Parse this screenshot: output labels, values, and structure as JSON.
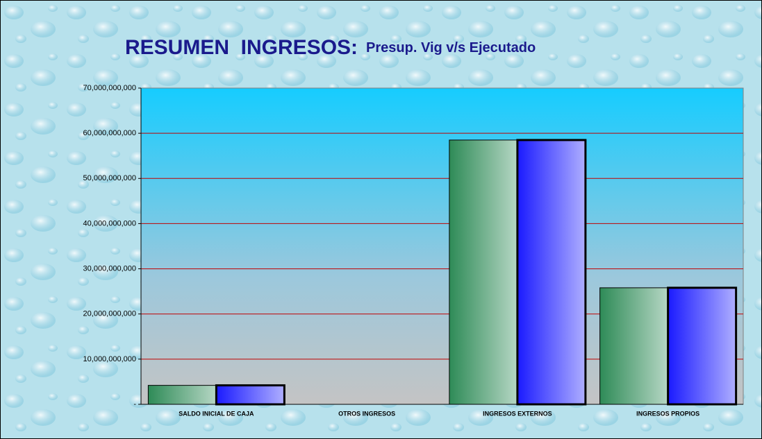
{
  "chart_data": {
    "type": "bar",
    "title": "RESUMEN  INGRESOS:",
    "subtitle": "Presup. Vig v/s Ejecutado",
    "categories": [
      "SALDO INICIAL DE CAJA",
      "OTROS INGRESOS",
      "INGRESOS EXTERNOS",
      "INGRESOS PROPIOS"
    ],
    "series": [
      {
        "color": "#2e8b57",
        "values": [
          4200000000,
          0,
          58500000000,
          25800000000
        ]
      },
      {
        "color": "#1a1aff",
        "values": [
          4200000000,
          0,
          58500000000,
          25800000000
        ]
      }
    ],
    "ylim": [
      0,
      70000000000
    ],
    "yticks": [
      {
        "value": 0,
        "label": "-"
      },
      {
        "value": 10000000000,
        "label": "10,000,000,000"
      },
      {
        "value": 20000000000,
        "label": "20,000,000,000"
      },
      {
        "value": 30000000000,
        "label": "30,000,000,000"
      },
      {
        "value": 40000000000,
        "label": "40,000,000,000"
      },
      {
        "value": 50000000000,
        "label": "50,000,000,000"
      },
      {
        "value": 60000000000,
        "label": "60,000,000,000"
      },
      {
        "value": 70000000000,
        "label": "70,000,000,000"
      }
    ],
    "grid": true,
    "grid_color": "#c00000"
  }
}
